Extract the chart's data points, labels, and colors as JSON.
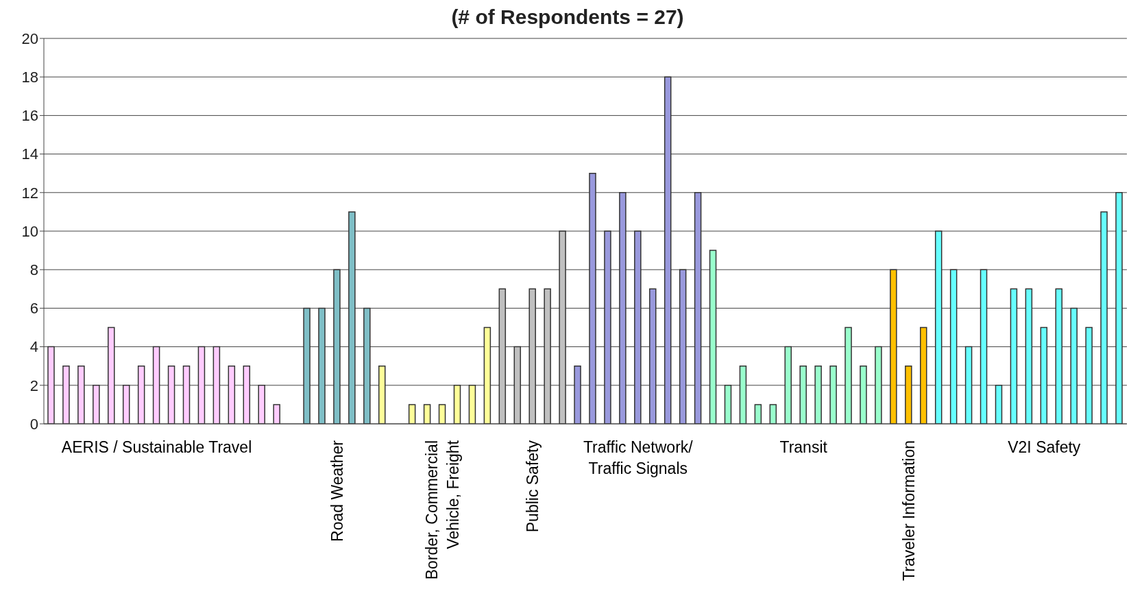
{
  "chart_data": {
    "type": "bar",
    "title": "(# of Respondents = 27)",
    "categories": [
      null,
      null,
      null,
      null,
      null,
      null,
      null,
      "AERIS / Sustainable Travel",
      null,
      null,
      null,
      null,
      null,
      null,
      null,
      null,
      null,
      null,
      null,
      "Road Weather",
      null,
      null,
      null,
      null,
      null,
      null,
      "Border, Commercial Vehicle, Freight",
      null,
      null,
      null,
      null,
      null,
      "Public Safety",
      null,
      null,
      null,
      null,
      null,
      null,
      "Traffic Network/ Traffic Signals",
      null,
      null,
      null,
      null,
      null,
      null,
      null,
      null,
      null,
      null,
      "Transit",
      null,
      null,
      null,
      null,
      null,
      null,
      "Traveler Information",
      null,
      null,
      null,
      null,
      null,
      null,
      null,
      null,
      "V2I Safety",
      null,
      null,
      null,
      null,
      null
    ],
    "values": [
      4,
      3,
      3,
      2,
      5,
      2,
      3,
      4,
      3,
      3,
      4,
      4,
      3,
      3,
      2,
      1,
      null,
      6,
      6,
      8,
      11,
      6,
      3,
      null,
      1,
      1,
      1,
      2,
      2,
      5,
      7,
      4,
      7,
      7,
      10,
      3,
      13,
      10,
      12,
      10,
      7,
      18,
      8,
      12,
      9,
      2,
      3,
      1,
      1,
      4,
      3,
      3,
      3,
      5,
      3,
      4,
      8,
      3,
      5,
      10,
      8,
      4,
      8,
      2,
      7,
      7,
      5,
      7,
      6,
      5,
      11,
      12
    ],
    "colors": [
      "#ffccff",
      "#ffccff",
      "#ffccff",
      "#ffccff",
      "#ffccff",
      "#ffccff",
      "#ffccff",
      "#ffccff",
      "#ffccff",
      "#ffccff",
      "#ffccff",
      "#ffccff",
      "#ffccff",
      "#ffccff",
      "#ffccff",
      "#ffccff",
      null,
      "#7fbfc7",
      "#7fbfc7",
      "#7fbfc7",
      "#7fbfc7",
      "#7fbfc7",
      "#ffff99",
      null,
      "#ffff99",
      "#ffff99",
      "#ffff99",
      "#ffff99",
      "#ffff99",
      "#ffff99",
      "#c0c0c0",
      "#c0c0c0",
      "#c0c0c0",
      "#c0c0c0",
      "#c0c0c0",
      "#9999dd",
      "#9999dd",
      "#9999dd",
      "#9999dd",
      "#9999dd",
      "#9999dd",
      "#9999dd",
      "#9999dd",
      "#9999dd",
      "#99ffcc",
      "#99ffcc",
      "#99ffcc",
      "#99ffcc",
      "#99ffcc",
      "#99ffcc",
      "#99ffcc",
      "#99ffcc",
      "#99ffcc",
      "#99ffcc",
      "#99ffcc",
      "#99ffcc",
      "#ffc000",
      "#ffc000",
      "#ffc000",
      "#66ffff",
      "#66ffff",
      "#66ffff",
      "#66ffff",
      "#66ffff",
      "#66ffff",
      "#66ffff",
      "#66ffff",
      "#66ffff",
      "#66ffff",
      "#66ffff",
      "#66ffff",
      "#66ffff"
    ],
    "ylim": [
      0,
      20
    ],
    "yticks": [
      0,
      2,
      4,
      6,
      8,
      10,
      12,
      14,
      16,
      18,
      20
    ],
    "grid": "y"
  }
}
